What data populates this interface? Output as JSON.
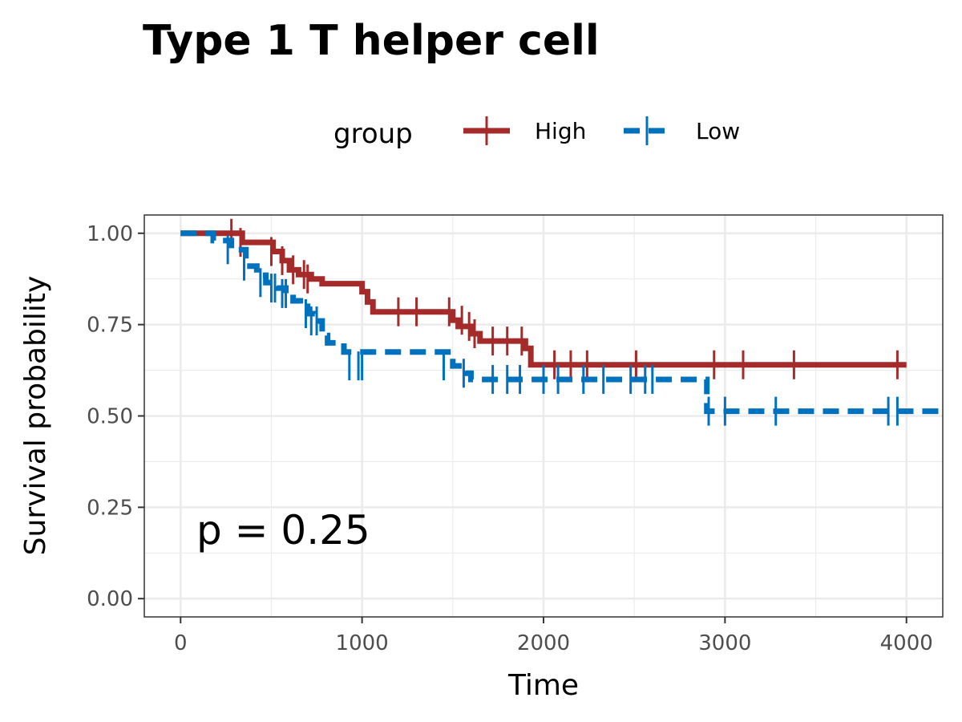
{
  "chart_data": {
    "type": "line",
    "subtype": "kaplan-meier",
    "title": "Type 1 T helper cell",
    "xlabel": "Time",
    "ylabel": "Survival probability",
    "xlim": [
      -200,
      4200
    ],
    "ylim": [
      -0.05,
      1.05
    ],
    "x_ticks": [
      0,
      1000,
      2000,
      3000,
      4000
    ],
    "x_tick_labels": [
      "0",
      "1000",
      "2000",
      "3000",
      "4000"
    ],
    "y_ticks": [
      0.0,
      0.25,
      0.5,
      0.75,
      1.0
    ],
    "y_tick_labels": [
      "0.00",
      "0.25",
      "0.50",
      "0.75",
      "1.00"
    ],
    "grid": true,
    "legend": {
      "title": "group",
      "position": "top"
    },
    "annotation": "p = 0.25",
    "series": [
      {
        "name": "High",
        "color": "#A52A2A",
        "dash": "solid",
        "x": [
          0,
          290,
          340,
          510,
          560,
          600,
          650,
          720,
          780,
          1000,
          1030,
          1060,
          1150,
          1500,
          1530,
          1600,
          1650,
          1900,
          1930,
          4000
        ],
        "y": [
          1.0,
          1.0,
          0.975,
          0.95,
          0.925,
          0.9,
          0.887,
          0.875,
          0.862,
          0.84,
          0.812,
          0.785,
          0.785,
          0.762,
          0.745,
          0.725,
          0.705,
          0.685,
          0.64,
          0.64
        ],
        "censor_x": [
          280,
          330,
          500,
          560,
          620,
          680,
          700,
          1200,
          1300,
          1480,
          1550,
          1590,
          1620,
          1720,
          1800,
          1880,
          2060,
          2150,
          2240,
          2510,
          2940,
          3100,
          3380,
          3950
        ],
        "censor_y": [
          1.0,
          0.975,
          0.95,
          0.925,
          0.9,
          0.887,
          0.875,
          0.785,
          0.785,
          0.785,
          0.762,
          0.745,
          0.725,
          0.705,
          0.705,
          0.705,
          0.64,
          0.64,
          0.64,
          0.64,
          0.64,
          0.64,
          0.64,
          0.64
        ]
      },
      {
        "name": "Low",
        "color": "#0072BD",
        "dash": "dashed",
        "x": [
          0,
          100,
          180,
          280,
          360,
          420,
          470,
          530,
          580,
          620,
          660,
          700,
          740,
          780,
          810,
          900,
          1500,
          1570,
          1600,
          2880,
          2900,
          4200
        ],
        "y": [
          1.0,
          1.0,
          0.98,
          0.955,
          0.91,
          0.885,
          0.865,
          0.85,
          0.835,
          0.815,
          0.8,
          0.78,
          0.76,
          0.72,
          0.7,
          0.675,
          0.637,
          0.617,
          0.6,
          0.6,
          0.513,
          0.513
        ],
        "censor_x": [
          260,
          350,
          440,
          500,
          520,
          560,
          580,
          690,
          720,
          750,
          930,
          980,
          1000,
          1450,
          1560,
          1720,
          1800,
          1870,
          2000,
          2080,
          2220,
          2330,
          2480,
          2560,
          2600,
          2910,
          3000,
          3280,
          3900,
          3950
        ],
        "censor_y": [
          0.955,
          0.91,
          0.865,
          0.85,
          0.85,
          0.835,
          0.835,
          0.78,
          0.76,
          0.76,
          0.637,
          0.637,
          0.637,
          0.637,
          0.617,
          0.6,
          0.6,
          0.6,
          0.6,
          0.6,
          0.6,
          0.6,
          0.6,
          0.6,
          0.6,
          0.513,
          0.513,
          0.513,
          0.513,
          0.513
        ]
      }
    ]
  }
}
